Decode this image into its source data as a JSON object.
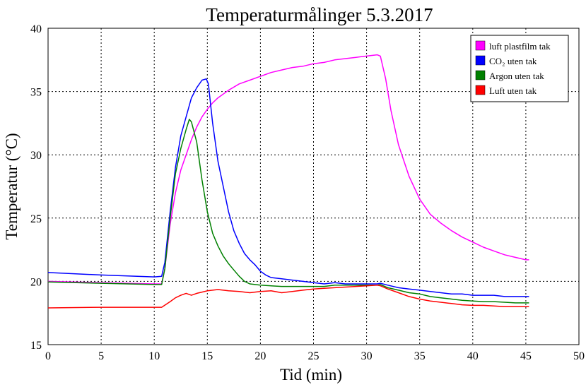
{
  "chart_data": {
    "type": "line",
    "title": "Temperaturmålinger 5.3.2017",
    "xlabel": "Tid (min)",
    "ylabel": "Temperatur (°C)",
    "xlim": [
      0,
      50
    ],
    "ylim": [
      15,
      40
    ],
    "xticks": [
      0,
      5,
      10,
      15,
      20,
      25,
      30,
      35,
      40,
      45,
      50
    ],
    "yticks": [
      15,
      20,
      25,
      30,
      35,
      40
    ],
    "grid": true,
    "legend_position": "top-right",
    "series": [
      {
        "name": "luft plastfilm tak",
        "color": "#ff00ff",
        "points": [
          [
            0,
            20.0
          ],
          [
            5,
            19.9
          ],
          [
            10,
            19.8
          ],
          [
            10.7,
            19.8
          ],
          [
            11,
            21.0
          ],
          [
            11.5,
            24.5
          ],
          [
            12,
            27.0
          ],
          [
            12.5,
            28.8
          ],
          [
            13,
            30.0
          ],
          [
            13.5,
            31.2
          ],
          [
            14,
            32.2
          ],
          [
            14.5,
            33.0
          ],
          [
            15,
            33.6
          ],
          [
            15.5,
            34.1
          ],
          [
            16,
            34.5
          ],
          [
            17,
            35.1
          ],
          [
            18,
            35.6
          ],
          [
            19,
            35.9
          ],
          [
            20,
            36.2
          ],
          [
            21,
            36.5
          ],
          [
            22,
            36.7
          ],
          [
            23,
            36.9
          ],
          [
            24,
            37.0
          ],
          [
            25,
            37.2
          ],
          [
            26,
            37.3
          ],
          [
            27,
            37.5
          ],
          [
            28,
            37.6
          ],
          [
            29,
            37.7
          ],
          [
            30,
            37.8
          ],
          [
            30.5,
            37.85
          ],
          [
            31,
            37.9
          ],
          [
            31.3,
            37.8
          ],
          [
            31.8,
            36.0
          ],
          [
            32.3,
            33.5
          ],
          [
            33,
            30.8
          ],
          [
            34,
            28.3
          ],
          [
            35,
            26.5
          ],
          [
            36,
            25.3
          ],
          [
            37,
            24.6
          ],
          [
            38,
            24.0
          ],
          [
            39,
            23.5
          ],
          [
            40,
            23.1
          ],
          [
            41,
            22.7
          ],
          [
            42,
            22.4
          ],
          [
            43,
            22.1
          ],
          [
            44,
            21.9
          ],
          [
            45,
            21.7
          ],
          [
            45.3,
            21.7
          ]
        ]
      },
      {
        "name": "CO₂ uten tak",
        "color": "#0000ff",
        "points": [
          [
            0,
            20.7
          ],
          [
            5,
            20.5
          ],
          [
            10,
            20.35
          ],
          [
            10.7,
            20.4
          ],
          [
            11,
            21.5
          ],
          [
            11.5,
            25.5
          ],
          [
            12,
            29.0
          ],
          [
            12.5,
            31.5
          ],
          [
            13,
            33.0
          ],
          [
            13.5,
            34.5
          ],
          [
            14,
            35.3
          ],
          [
            14.5,
            35.9
          ],
          [
            14.9,
            36.0
          ],
          [
            15.1,
            35.6
          ],
          [
            15.5,
            32.5
          ],
          [
            16,
            29.5
          ],
          [
            16.5,
            27.5
          ],
          [
            17,
            25.5
          ],
          [
            17.5,
            24.0
          ],
          [
            18,
            23.0
          ],
          [
            18.5,
            22.2
          ],
          [
            19,
            21.7
          ],
          [
            19.5,
            21.3
          ],
          [
            20,
            20.8
          ],
          [
            20.5,
            20.5
          ],
          [
            21,
            20.3
          ],
          [
            22,
            20.2
          ],
          [
            23,
            20.1
          ],
          [
            24,
            20.0
          ],
          [
            25,
            19.9
          ],
          [
            26,
            19.8
          ],
          [
            27,
            19.9
          ],
          [
            28,
            19.8
          ],
          [
            29,
            19.8
          ],
          [
            30,
            19.8
          ],
          [
            31,
            19.8
          ],
          [
            31.3,
            19.85
          ],
          [
            32,
            19.7
          ],
          [
            33,
            19.5
          ],
          [
            34,
            19.4
          ],
          [
            35,
            19.3
          ],
          [
            36,
            19.2
          ],
          [
            37,
            19.1
          ],
          [
            38,
            19.0
          ],
          [
            39,
            19.0
          ],
          [
            40,
            18.9
          ],
          [
            41,
            18.9
          ],
          [
            42,
            18.9
          ],
          [
            43,
            18.8
          ],
          [
            44,
            18.8
          ],
          [
            45,
            18.8
          ],
          [
            45.3,
            18.8
          ]
        ]
      },
      {
        "name": "Argon uten tak",
        "color": "#008000",
        "points": [
          [
            0,
            19.95
          ],
          [
            5,
            19.85
          ],
          [
            10,
            19.75
          ],
          [
            10.7,
            19.75
          ],
          [
            11,
            21.0
          ],
          [
            11.5,
            25.0
          ],
          [
            12,
            28.5
          ],
          [
            12.5,
            30.5
          ],
          [
            13,
            32.0
          ],
          [
            13.3,
            32.8
          ],
          [
            13.5,
            32.6
          ],
          [
            14,
            31.0
          ],
          [
            14.5,
            28.0
          ],
          [
            15,
            25.5
          ],
          [
            15.5,
            23.8
          ],
          [
            16,
            22.8
          ],
          [
            16.5,
            22.0
          ],
          [
            17,
            21.4
          ],
          [
            17.5,
            20.9
          ],
          [
            18,
            20.4
          ],
          [
            18.5,
            20.0
          ],
          [
            19,
            19.8
          ],
          [
            20,
            19.7
          ],
          [
            21,
            19.65
          ],
          [
            22,
            19.6
          ],
          [
            23,
            19.6
          ],
          [
            24,
            19.6
          ],
          [
            25,
            19.6
          ],
          [
            26,
            19.6
          ],
          [
            27,
            19.7
          ],
          [
            28,
            19.7
          ],
          [
            29,
            19.7
          ],
          [
            30,
            19.7
          ],
          [
            31,
            19.7
          ],
          [
            31.3,
            19.75
          ],
          [
            32,
            19.5
          ],
          [
            33,
            19.3
          ],
          [
            34,
            19.1
          ],
          [
            35,
            19.0
          ],
          [
            36,
            18.8
          ],
          [
            37,
            18.7
          ],
          [
            38,
            18.6
          ],
          [
            39,
            18.5
          ],
          [
            40,
            18.45
          ],
          [
            41,
            18.4
          ],
          [
            42,
            18.4
          ],
          [
            43,
            18.35
          ],
          [
            44,
            18.3
          ],
          [
            45,
            18.3
          ],
          [
            45.3,
            18.3
          ]
        ]
      },
      {
        "name": "Luft uten tak",
        "color": "#ff0000",
        "points": [
          [
            0,
            17.9
          ],
          [
            5,
            17.95
          ],
          [
            10,
            17.95
          ],
          [
            10.7,
            17.95
          ],
          [
            11.5,
            18.4
          ],
          [
            12,
            18.7
          ],
          [
            12.5,
            18.9
          ],
          [
            13,
            19.05
          ],
          [
            13.5,
            18.9
          ],
          [
            14,
            19.05
          ],
          [
            14.5,
            19.15
          ],
          [
            15,
            19.25
          ],
          [
            15.5,
            19.3
          ],
          [
            16,
            19.35
          ],
          [
            17,
            19.25
          ],
          [
            18,
            19.2
          ],
          [
            19,
            19.1
          ],
          [
            20,
            19.2
          ],
          [
            21,
            19.25
          ],
          [
            22,
            19.1
          ],
          [
            23,
            19.2
          ],
          [
            24,
            19.3
          ],
          [
            25,
            19.4
          ],
          [
            26,
            19.45
          ],
          [
            27,
            19.5
          ],
          [
            28,
            19.55
          ],
          [
            29,
            19.6
          ],
          [
            30,
            19.65
          ],
          [
            31,
            19.7
          ],
          [
            31.3,
            19.65
          ],
          [
            32,
            19.4
          ],
          [
            33,
            19.1
          ],
          [
            34,
            18.8
          ],
          [
            35,
            18.6
          ],
          [
            36,
            18.45
          ],
          [
            37,
            18.35
          ],
          [
            38,
            18.25
          ],
          [
            39,
            18.15
          ],
          [
            40,
            18.1
          ],
          [
            41,
            18.1
          ],
          [
            42,
            18.05
          ],
          [
            43,
            18.0
          ],
          [
            44,
            18.0
          ],
          [
            45,
            18.0
          ],
          [
            45.3,
            18.0
          ]
        ]
      }
    ]
  }
}
